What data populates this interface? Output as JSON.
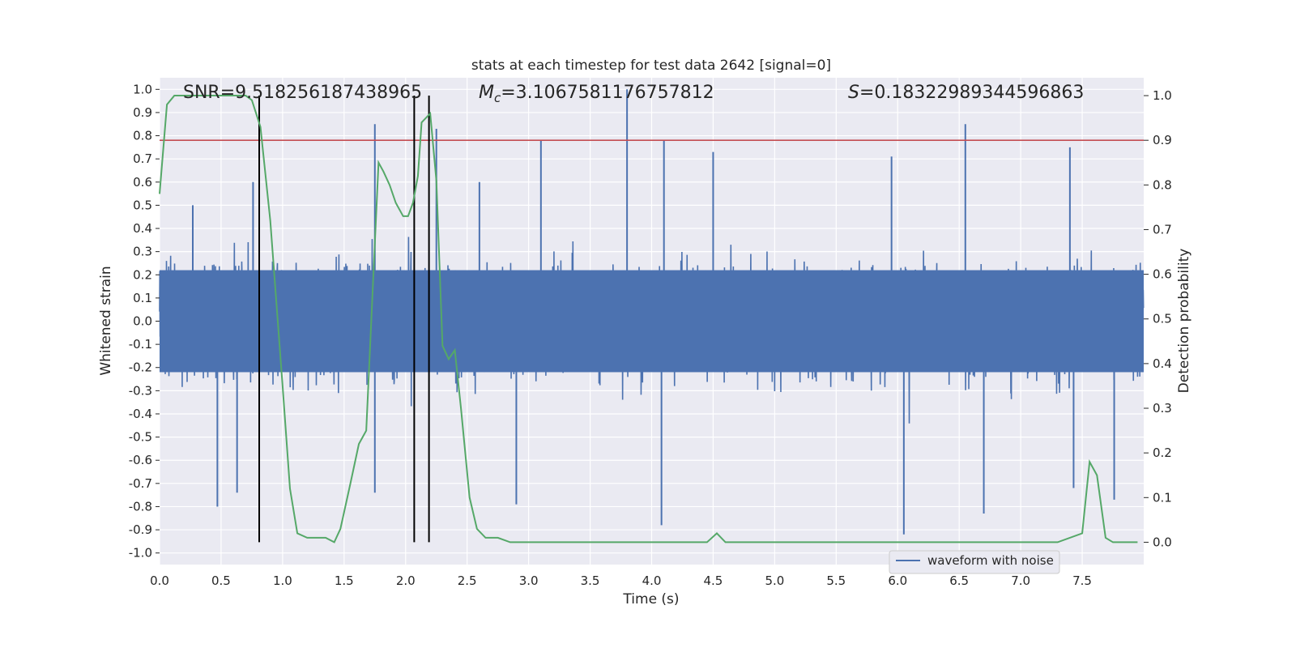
{
  "chart_data": {
    "type": "line",
    "title": "stats at each timestep for test data 2642 [signal=0]",
    "xlabel": "Time (s)",
    "ylabel": "Whitened strain",
    "y2label": "Detection probability",
    "xlim": [
      0.0,
      8.0
    ],
    "ylim": [
      -1.05,
      1.05
    ],
    "y2lim": [
      -0.05,
      1.04
    ],
    "xticks": [
      "0.0",
      "0.5",
      "1.0",
      "1.5",
      "2.0",
      "2.5",
      "3.0",
      "3.5",
      "4.0",
      "4.5",
      "5.0",
      "5.5",
      "6.0",
      "6.5",
      "7.0",
      "7.5"
    ],
    "yticks": [
      "-1.0",
      "-0.9",
      "-0.8",
      "-0.7",
      "-0.6",
      "-0.5",
      "-0.4",
      "-0.3",
      "-0.2",
      "-0.1",
      "0.0",
      "0.1",
      "0.2",
      "0.3",
      "0.4",
      "0.5",
      "0.6",
      "0.7",
      "0.8",
      "0.9",
      "1.0"
    ],
    "y2ticks": [
      "0.0",
      "0.1",
      "0.2",
      "0.3",
      "0.4",
      "0.5",
      "0.6",
      "0.7",
      "0.8",
      "0.9",
      "1.0"
    ],
    "grid": true,
    "legend": {
      "placement": "lower-center-right",
      "entries": [
        "waveform with noise"
      ]
    },
    "annotations": {
      "snr_text": "SNR=9.518256187438965",
      "mc_value": "=3.1067581176757812",
      "s_value": "=0.18322989344596863"
    },
    "threshold": {
      "axis": "y2",
      "value": 0.9,
      "color": "#c44e52"
    },
    "vertical_markers": {
      "x": [
        0.81,
        2.07,
        2.19
      ],
      "y2_range": [
        0.0,
        1.0
      ],
      "color": "#000000"
    },
    "series": [
      {
        "name": "waveform with noise",
        "axis": "y",
        "color": "#4c72b0",
        "note_type": "dense_noise",
        "duration": 8.0,
        "envelope": 0.42,
        "spikes": [
          {
            "x": 0.27,
            "y": 0.5
          },
          {
            "x": 0.47,
            "y": -0.8
          },
          {
            "x": 0.63,
            "y": -0.74
          },
          {
            "x": 0.76,
            "y": 0.6
          },
          {
            "x": 1.75,
            "y": 0.85
          },
          {
            "x": 1.75,
            "y": -0.74
          },
          {
            "x": 2.25,
            "y": 0.83
          },
          {
            "x": 2.6,
            "y": 0.6
          },
          {
            "x": 2.9,
            "y": -0.79
          },
          {
            "x": 3.1,
            "y": 0.78
          },
          {
            "x": 3.8,
            "y": 1.0
          },
          {
            "x": 4.08,
            "y": -0.88
          },
          {
            "x": 4.1,
            "y": 0.78
          },
          {
            "x": 4.5,
            "y": 0.73
          },
          {
            "x": 5.95,
            "y": 0.71
          },
          {
            "x": 6.05,
            "y": -0.92
          },
          {
            "x": 6.55,
            "y": 0.85
          },
          {
            "x": 6.7,
            "y": -0.83
          },
          {
            "x": 7.4,
            "y": 0.75
          },
          {
            "x": 7.43,
            "y": -0.72
          },
          {
            "x": 7.76,
            "y": -0.77
          }
        ]
      },
      {
        "name": "",
        "axis": "y2",
        "color": "#55a868",
        "x": [
          0.0,
          0.06,
          0.12,
          0.2,
          0.3,
          0.4,
          0.5,
          0.6,
          0.7,
          0.75,
          0.82,
          0.9,
          1.0,
          1.06,
          1.12,
          1.2,
          1.3,
          1.35,
          1.42,
          1.47,
          1.55,
          1.62,
          1.68,
          1.73,
          1.78,
          1.82,
          1.87,
          1.92,
          1.98,
          2.02,
          2.06,
          2.1,
          2.13,
          2.2,
          2.25,
          2.3,
          2.35,
          2.4,
          2.45,
          2.52,
          2.58,
          2.65,
          2.75,
          2.85,
          3.0,
          3.3,
          3.6,
          4.0,
          4.45,
          4.53,
          4.6,
          4.7,
          4.9,
          5.2,
          5.5,
          6.0,
          6.5,
          7.0,
          7.3,
          7.5,
          7.56,
          7.62,
          7.69,
          7.75,
          7.95
        ],
        "y": [
          0.78,
          0.98,
          1.0,
          1.0,
          1.0,
          1.0,
          1.0,
          1.0,
          1.0,
          0.99,
          0.93,
          0.72,
          0.35,
          0.12,
          0.02,
          0.01,
          0.01,
          0.01,
          0.0,
          0.03,
          0.13,
          0.22,
          0.25,
          0.55,
          0.85,
          0.83,
          0.8,
          0.76,
          0.73,
          0.73,
          0.76,
          0.82,
          0.94,
          0.96,
          0.81,
          0.44,
          0.41,
          0.43,
          0.3,
          0.1,
          0.03,
          0.01,
          0.01,
          0.0,
          0.0,
          0.0,
          0.0,
          0.0,
          0.0,
          0.02,
          0.0,
          0.0,
          0.0,
          0.0,
          0.0,
          0.0,
          0.0,
          0.0,
          0.0,
          0.02,
          0.18,
          0.15,
          0.01,
          0.0,
          0.0
        ]
      }
    ]
  }
}
